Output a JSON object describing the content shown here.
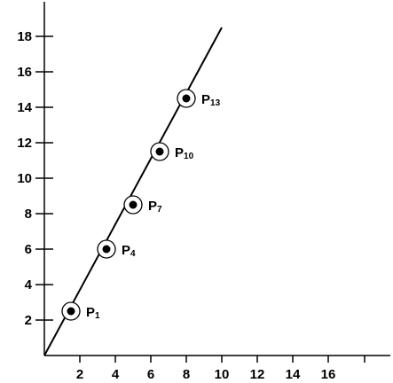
{
  "chart_data": {
    "type": "line",
    "title": "",
    "xlabel": "",
    "ylabel": "",
    "xlim": [
      0,
      19.5
    ],
    "ylim": [
      0,
      19.5
    ],
    "x_ticks": [
      2,
      4,
      6,
      8,
      10,
      12,
      14,
      16
    ],
    "y_ticks": [
      2,
      4,
      6,
      8,
      10,
      12,
      14,
      16,
      18
    ],
    "grid": false,
    "legend": "none",
    "series": [
      {
        "line": [
          [
            0,
            0
          ],
          [
            10,
            18.5
          ]
        ],
        "points": [
          {
            "label": "P",
            "sub": "1",
            "x": 1.5,
            "y": 2.5
          },
          {
            "label": "P",
            "sub": "4",
            "x": 3.5,
            "y": 6
          },
          {
            "label": "P",
            "sub": "7",
            "x": 5,
            "y": 8.5
          },
          {
            "label": "P",
            "sub": "10",
            "x": 6.5,
            "y": 11.5
          },
          {
            "label": "P",
            "sub": "13",
            "x": 8,
            "y": 14.5
          }
        ]
      }
    ]
  }
}
